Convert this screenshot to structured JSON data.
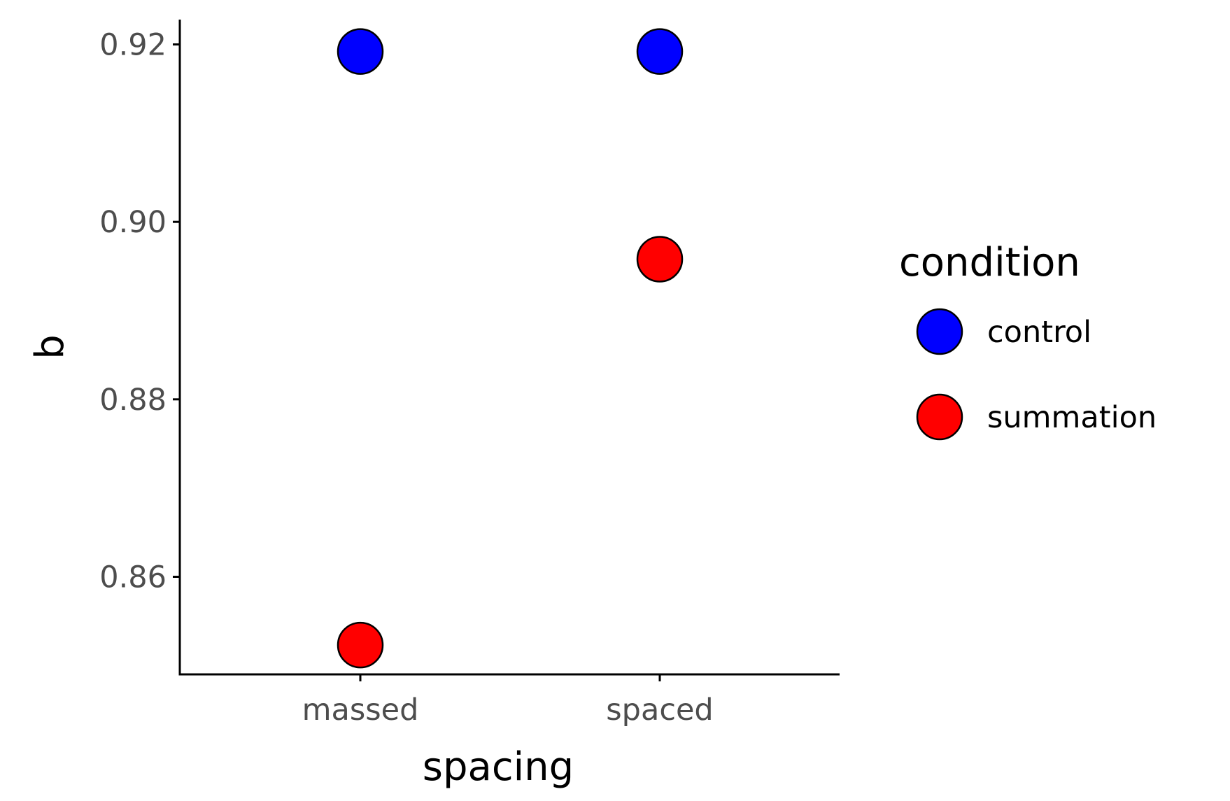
{
  "chart_data": {
    "type": "scatter",
    "xlabel": "spacing",
    "ylabel": "b",
    "categories": [
      "massed",
      "spaced"
    ],
    "ylim": [
      0.849,
      0.9228
    ],
    "yticks": [
      0.86,
      0.88,
      0.9,
      0.92
    ],
    "ytick_labels": [
      "0.86",
      "0.88",
      "0.90",
      "0.92"
    ],
    "legend_title": "condition",
    "legend_position": "right",
    "grid": false,
    "series": [
      {
        "name": "control",
        "color": "#0000ff",
        "values": [
          0.9192,
          0.9192
        ]
      },
      {
        "name": "summation",
        "color": "#ff0000",
        "values": [
          0.8523,
          0.8958
        ]
      }
    ]
  }
}
